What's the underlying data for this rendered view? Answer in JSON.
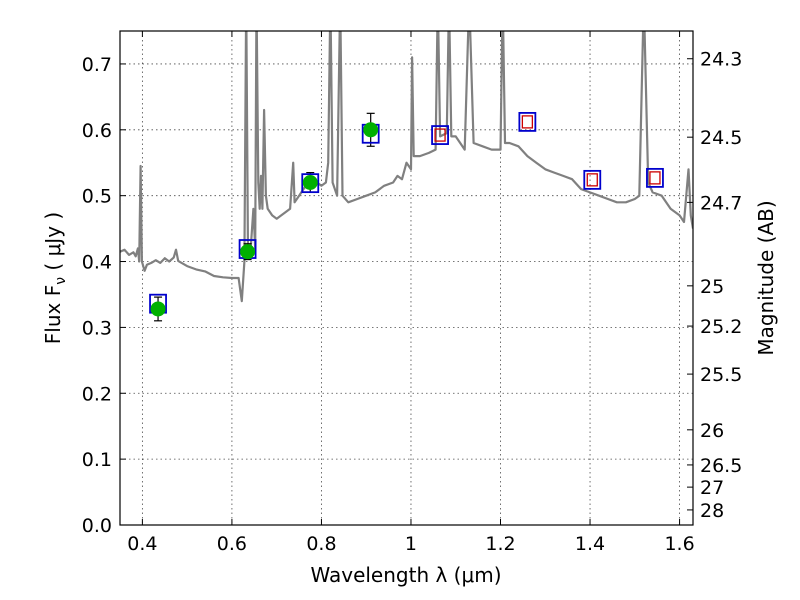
{
  "chart_data": {
    "type": "scatter",
    "title": "",
    "xlabel": "Wavelength  λ (μm)",
    "ylabel": "Flux  F",
    "ylabel_sub": "ν",
    "ylabel_units": " ( μJy )",
    "ylabel_right": "Magnitude (AB)",
    "xlim": [
      0.35,
      1.63
    ],
    "ylim": [
      0.0,
      0.75
    ],
    "grid": true,
    "x_ticks": [
      0.4,
      0.6,
      0.8,
      1.0,
      1.2,
      1.4,
      1.6
    ],
    "x_tick_labels": [
      "0.4",
      "0.6",
      "0.8",
      "1",
      "1.2",
      "1.4",
      "1.6"
    ],
    "y_ticks": [
      0.0,
      0.1,
      0.2,
      0.3,
      0.4,
      0.5,
      0.6,
      0.7
    ],
    "y_tick_labels": [
      "0.0",
      "0.1",
      "0.2",
      "0.3",
      "0.4",
      "0.5",
      "0.6",
      "0.7"
    ],
    "right_ticks": [
      {
        "label": "24.3",
        "flux": 0.7079
      },
      {
        "label": "24.5",
        "flux": 0.5888
      },
      {
        "label": "24.7",
        "flux": 0.4898
      },
      {
        "label": "25",
        "flux": 0.3631
      },
      {
        "label": "25.2",
        "flux": 0.302
      },
      {
        "label": "25.5",
        "flux": 0.2291
      },
      {
        "label": "26",
        "flux": 0.1445
      },
      {
        "label": "26.5",
        "flux": 0.0912
      },
      {
        "label": "27",
        "flux": 0.0575
      },
      {
        "label": "28",
        "flux": 0.0229
      }
    ],
    "model_spectrum": {
      "color": "#808080",
      "points": [
        [
          0.35,
          0.415
        ],
        [
          0.36,
          0.418
        ],
        [
          0.37,
          0.41
        ],
        [
          0.38,
          0.414
        ],
        [
          0.385,
          0.408
        ],
        [
          0.39,
          0.42
        ],
        [
          0.393,
          0.4
        ],
        [
          0.396,
          0.545
        ],
        [
          0.399,
          0.4
        ],
        [
          0.405,
          0.386
        ],
        [
          0.41,
          0.395
        ],
        [
          0.42,
          0.398
        ],
        [
          0.43,
          0.402
        ],
        [
          0.44,
          0.398
        ],
        [
          0.45,
          0.405
        ],
        [
          0.46,
          0.4
        ],
        [
          0.47,
          0.406
        ],
        [
          0.475,
          0.418
        ],
        [
          0.48,
          0.401
        ],
        [
          0.5,
          0.393
        ],
        [
          0.52,
          0.388
        ],
        [
          0.54,
          0.385
        ],
        [
          0.56,
          0.378
        ],
        [
          0.58,
          0.376
        ],
        [
          0.6,
          0.375
        ],
        [
          0.615,
          0.375
        ],
        [
          0.622,
          0.34
        ],
        [
          0.628,
          0.4
        ],
        [
          0.632,
          0.8
        ],
        [
          0.636,
          0.41
        ],
        [
          0.642,
          0.42
        ],
        [
          0.648,
          0.48
        ],
        [
          0.652,
          0.42
        ],
        [
          0.655,
          0.8
        ],
        [
          0.659,
          0.52
        ],
        [
          0.662,
          0.48
        ],
        [
          0.665,
          0.53
        ],
        [
          0.668,
          0.48
        ],
        [
          0.672,
          0.63
        ],
        [
          0.676,
          0.5
        ],
        [
          0.68,
          0.48
        ],
        [
          0.69,
          0.47
        ],
        [
          0.7,
          0.465
        ],
        [
          0.71,
          0.47
        ],
        [
          0.72,
          0.475
        ],
        [
          0.73,
          0.48
        ],
        [
          0.737,
          0.55
        ],
        [
          0.74,
          0.49
        ],
        [
          0.75,
          0.5
        ],
        [
          0.76,
          0.51
        ],
        [
          0.77,
          0.52
        ],
        [
          0.78,
          0.515
        ],
        [
          0.79,
          0.52
        ],
        [
          0.8,
          0.515
        ],
        [
          0.81,
          0.52
        ],
        [
          0.815,
          0.55
        ],
        [
          0.82,
          0.8
        ],
        [
          0.825,
          0.52
        ],
        [
          0.835,
          0.5
        ],
        [
          0.842,
          0.8
        ],
        [
          0.847,
          0.5
        ],
        [
          0.86,
          0.49
        ],
        [
          0.88,
          0.495
        ],
        [
          0.9,
          0.5
        ],
        [
          0.92,
          0.505
        ],
        [
          0.93,
          0.51
        ],
        [
          0.94,
          0.515
        ],
        [
          0.96,
          0.52
        ],
        [
          0.97,
          0.53
        ],
        [
          0.98,
          0.525
        ],
        [
          0.99,
          0.55
        ],
        [
          1.0,
          0.54
        ],
        [
          1.0025,
          0.71
        ],
        [
          1.006,
          0.56
        ],
        [
          1.02,
          0.56
        ],
        [
          1.04,
          0.565
        ],
        [
          1.055,
          0.57
        ],
        [
          1.06,
          0.8
        ],
        [
          1.065,
          0.59
        ],
        [
          1.08,
          0.595
        ],
        [
          1.085,
          0.8
        ],
        [
          1.09,
          0.59
        ],
        [
          1.1,
          0.59
        ],
        [
          1.12,
          0.57
        ],
        [
          1.13,
          0.8
        ],
        [
          1.14,
          0.58
        ],
        [
          1.16,
          0.575
        ],
        [
          1.18,
          0.57
        ],
        [
          1.2,
          0.57
        ],
        [
          1.205,
          0.8
        ],
        [
          1.21,
          0.58
        ],
        [
          1.22,
          0.58
        ],
        [
          1.24,
          0.575
        ],
        [
          1.26,
          0.56
        ],
        [
          1.28,
          0.55
        ],
        [
          1.3,
          0.54
        ],
        [
          1.32,
          0.535
        ],
        [
          1.34,
          0.53
        ],
        [
          1.36,
          0.525
        ],
        [
          1.38,
          0.51
        ],
        [
          1.4,
          0.505
        ],
        [
          1.42,
          0.5
        ],
        [
          1.44,
          0.495
        ],
        [
          1.46,
          0.49
        ],
        [
          1.48,
          0.49
        ],
        [
          1.5,
          0.495
        ],
        [
          1.51,
          0.5
        ],
        [
          1.52,
          0.8
        ],
        [
          1.53,
          0.52
        ],
        [
          1.54,
          0.505
        ],
        [
          1.56,
          0.5
        ],
        [
          1.58,
          0.48
        ],
        [
          1.6,
          0.47
        ],
        [
          1.61,
          0.46
        ],
        [
          1.62,
          0.54
        ],
        [
          1.625,
          0.47
        ],
        [
          1.63,
          0.45
        ]
      ]
    },
    "model_photometry": {
      "marker": "square",
      "color": "#0000cc",
      "points": [
        [
          0.435,
          0.336
        ],
        [
          0.635,
          0.419
        ],
        [
          0.775,
          0.519
        ],
        [
          0.91,
          0.594
        ],
        [
          1.065,
          0.592
        ],
        [
          1.26,
          0.612
        ],
        [
          1.405,
          0.524
        ],
        [
          1.545,
          0.527
        ]
      ]
    },
    "observed_photometry": {
      "marker": "circle",
      "color": "#00b000",
      "points": [
        {
          "x": 0.435,
          "y": 0.328,
          "err": 0.018
        },
        {
          "x": 0.635,
          "y": 0.415,
          "err": 0.012
        },
        {
          "x": 0.775,
          "y": 0.52,
          "err": 0.015
        },
        {
          "x": 0.91,
          "y": 0.6,
          "err": 0.025
        }
      ]
    },
    "upper_limits": {
      "marker": "open-square",
      "color": "#cc0000",
      "points": [
        [
          1.065,
          0.592
        ],
        [
          1.26,
          0.612
        ],
        [
          1.405,
          0.524
        ],
        [
          1.545,
          0.527
        ]
      ]
    }
  }
}
